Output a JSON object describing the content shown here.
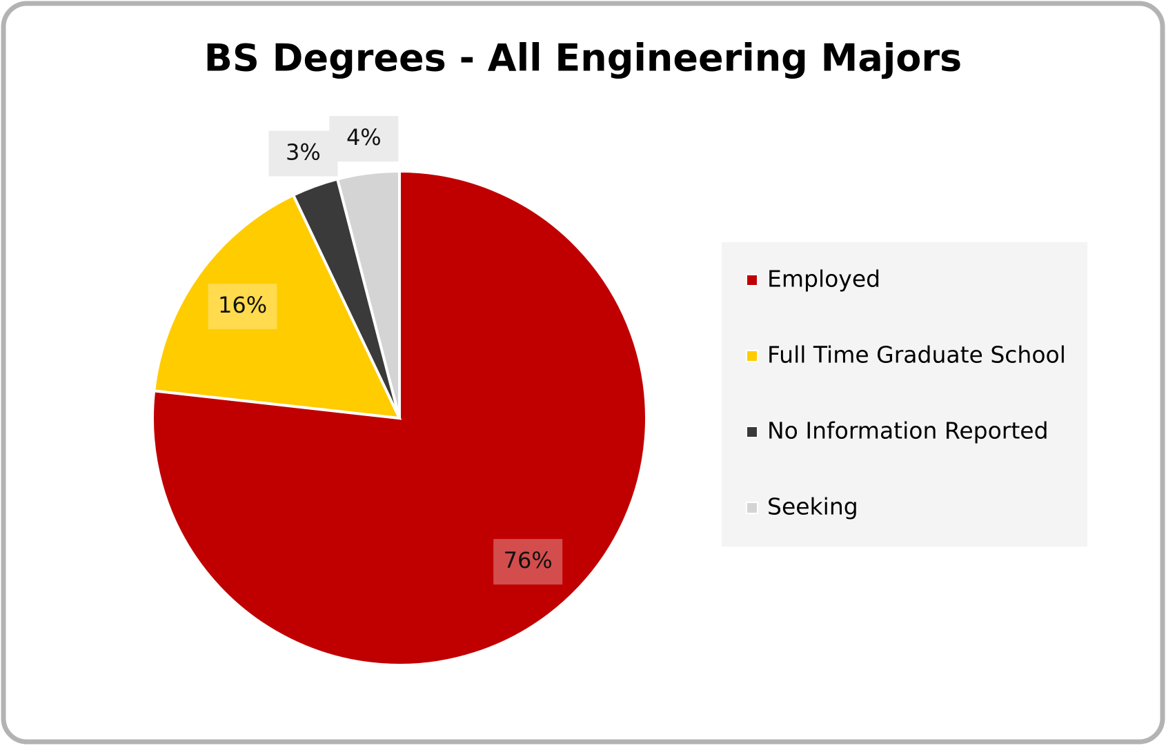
{
  "chart_data": {
    "type": "pie",
    "title": "BS Degrees - All Engineering Majors",
    "categories": [
      "Employed",
      "Full Time Graduate School",
      "No Information Reported",
      "Seeking"
    ],
    "values": [
      76,
      16,
      3,
      4
    ],
    "value_labels": [
      "76%",
      "16%",
      "3%",
      "4%"
    ],
    "colors": [
      "#c00000",
      "#ffcc00",
      "#3a3a3a",
      "#d4d4d4"
    ],
    "legend": "right"
  }
}
